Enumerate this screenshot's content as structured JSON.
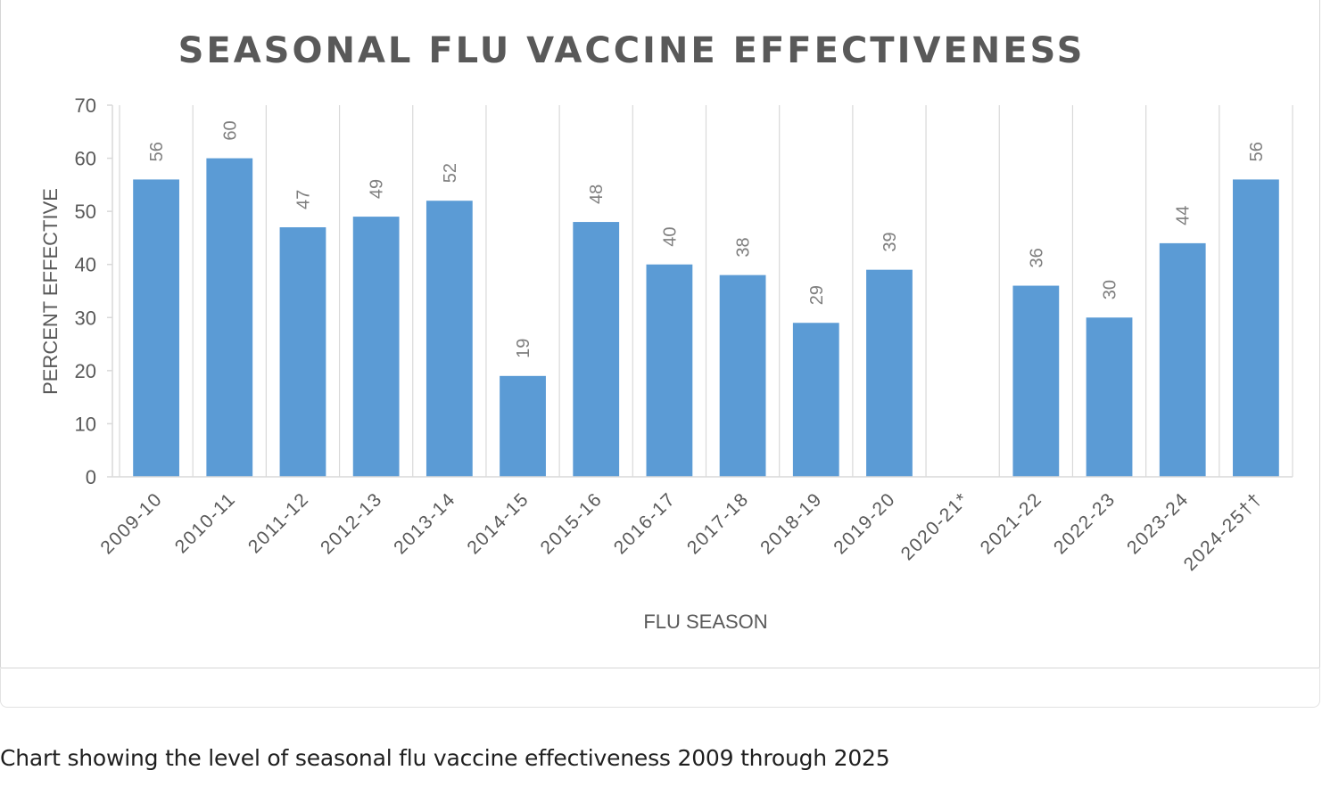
{
  "caption": "Chart showing the level of seasonal flu vaccine effectiveness 2009 through 2025",
  "chart_data": {
    "type": "bar",
    "title": "SEASONAL FLU VACCINE EFFECTIVENESS",
    "xlabel": "FLU SEASON",
    "ylabel": "PERCENT EFFECTIVE",
    "ylim": [
      0,
      70
    ],
    "yticks": [
      0,
      10,
      20,
      30,
      40,
      50,
      60,
      70
    ],
    "grid": "vertical category separators",
    "legend": "none",
    "categories": [
      "2009-10",
      "2010-11",
      "2011-12",
      "2012-13",
      "2013-14",
      "2014-15",
      "2015-16",
      "2016-17",
      "2017-18",
      "2018-19",
      "2019-20",
      "2020-21*",
      "2021-22",
      "2022-23",
      "2023-24",
      "2024-25††"
    ],
    "values": [
      56,
      60,
      47,
      49,
      52,
      19,
      48,
      40,
      38,
      29,
      39,
      null,
      36,
      30,
      44,
      56
    ],
    "data_labels": [
      "56",
      "60",
      "47",
      "49",
      "52",
      "19",
      "48",
      "40",
      "38",
      "29",
      "39",
      "",
      "36",
      "30",
      "44",
      "56"
    ],
    "colors": {
      "bar": "#5b9bd5",
      "title": "#595959",
      "axis_text": "#595959",
      "data_label": "#7f7f7f",
      "axis_line": "#d9d9d9",
      "grid": "#d9d9d9"
    }
  }
}
